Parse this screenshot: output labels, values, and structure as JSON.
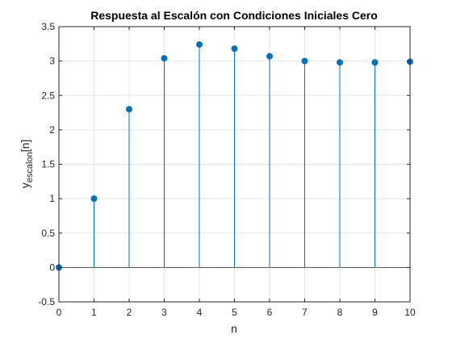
{
  "chart_data": {
    "type": "stem",
    "title": "Respuesta al Escalón con Condiciones Iniciales Cero",
    "xlabel": "n",
    "ylabel": {
      "base": "y",
      "subscript": "escalon",
      "suffix": "[n]"
    },
    "xlim": [
      0,
      10
    ],
    "ylim": [
      -0.5,
      3.5
    ],
    "xticks": [
      "0",
      "1",
      "2",
      "3",
      "4",
      "5",
      "6",
      "7",
      "8",
      "9",
      "10"
    ],
    "yticks": [
      "-0.5",
      "0",
      "0.5",
      "1",
      "1.5",
      "2",
      "2.5",
      "3",
      "3.5"
    ],
    "grid": true,
    "series": [
      {
        "x": [
          0,
          1,
          2,
          3,
          4,
          5,
          6,
          7,
          8,
          9,
          10
        ],
        "values": [
          0,
          1,
          2.3,
          3.04,
          3.24,
          3.18,
          3.07,
          3.0,
          2.98,
          2.98,
          2.99
        ],
        "color": "#0072BD"
      }
    ],
    "colors": {
      "axis": "#262626",
      "grid": "#e6e6e6",
      "baseline": "#262626"
    }
  }
}
